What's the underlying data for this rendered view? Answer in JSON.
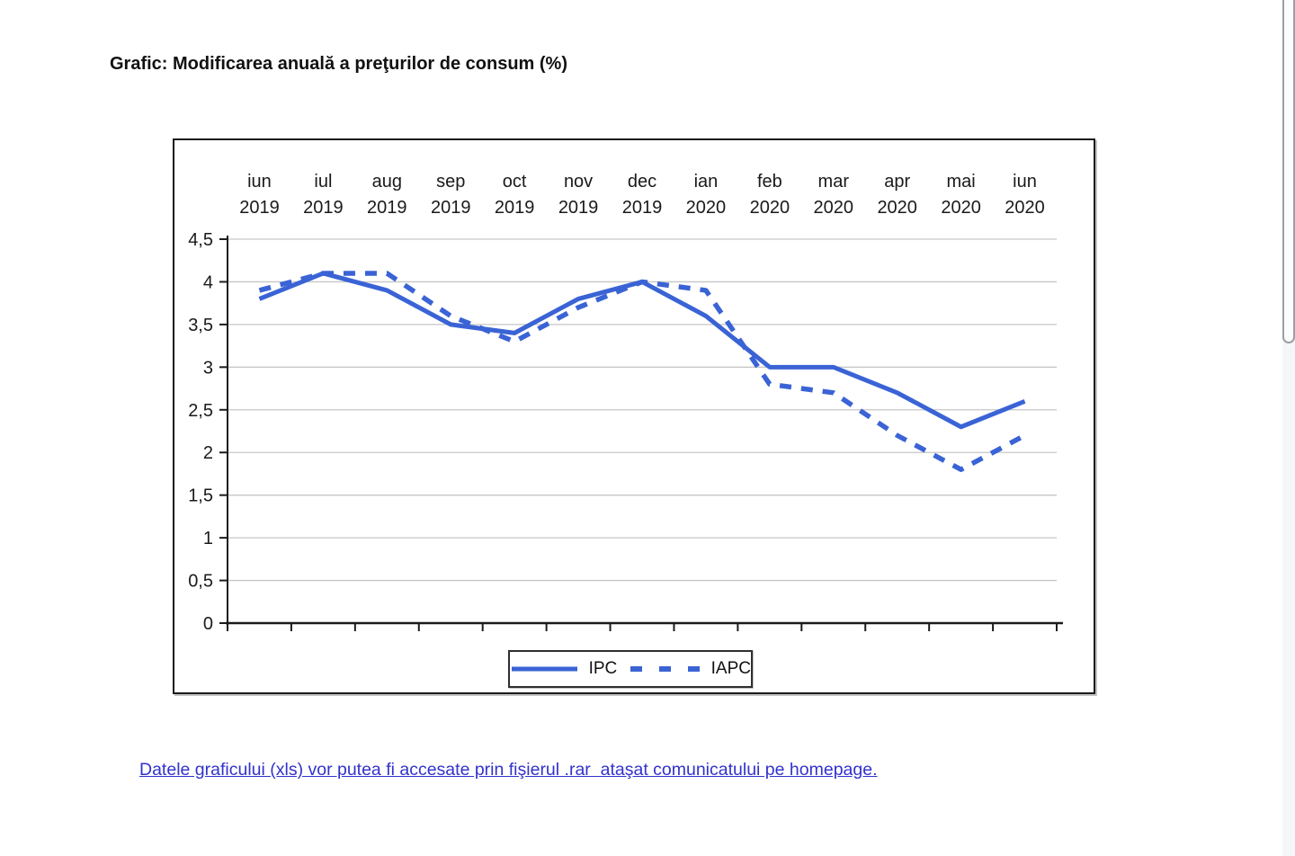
{
  "page": {
    "title": "Grafic: Modificarea anuală a preţurilor de consum (%)",
    "footer_link": "Datele graficului (xls) vor putea fi accesate prin fişierul .rar  ataşat comunicatului pe homepage."
  },
  "colors": {
    "series_blue": "#3a63d5",
    "gridline_gray": "#c6c6c6",
    "axis_black": "#1b1b1b",
    "link_blue": "#3232cc"
  },
  "chart_data": {
    "type": "line",
    "title": "Modificarea anuală a preţurilor de consum (%)",
    "categories": [
      "iun 2019",
      "iul 2019",
      "aug 2019",
      "sep 2019",
      "oct 2019",
      "nov 2019",
      "dec 2019",
      "ian 2020",
      "feb 2020",
      "mar 2020",
      "apr 2020",
      "mai 2020",
      "iun 2020"
    ],
    "category_months": [
      "iun",
      "iul",
      "aug",
      "sep",
      "oct",
      "nov",
      "dec",
      "ian",
      "feb",
      "mar",
      "apr",
      "mai",
      "iun"
    ],
    "category_years": [
      "2019",
      "2019",
      "2019",
      "2019",
      "2019",
      "2019",
      "2019",
      "2020",
      "2020",
      "2020",
      "2020",
      "2020",
      "2020"
    ],
    "y_tick_labels": [
      "0",
      "0,5",
      "1",
      "1,5",
      "2",
      "2,5",
      "3",
      "3,5",
      "4",
      "4,5"
    ],
    "ylim": [
      0,
      4.5
    ],
    "y_step": 0.5,
    "grid": true,
    "legend_position": "bottom",
    "series": [
      {
        "name": "IPC",
        "style": "solid",
        "values": [
          3.8,
          4.1,
          3.9,
          3.5,
          3.4,
          3.8,
          4.0,
          3.6,
          3.0,
          3.0,
          2.7,
          2.3,
          2.6
        ]
      },
      {
        "name": "IAPC",
        "style": "dashed",
        "values": [
          3.9,
          4.1,
          4.1,
          3.6,
          3.3,
          3.7,
          4.0,
          3.9,
          2.8,
          2.7,
          2.2,
          1.8,
          2.2
        ]
      }
    ]
  }
}
